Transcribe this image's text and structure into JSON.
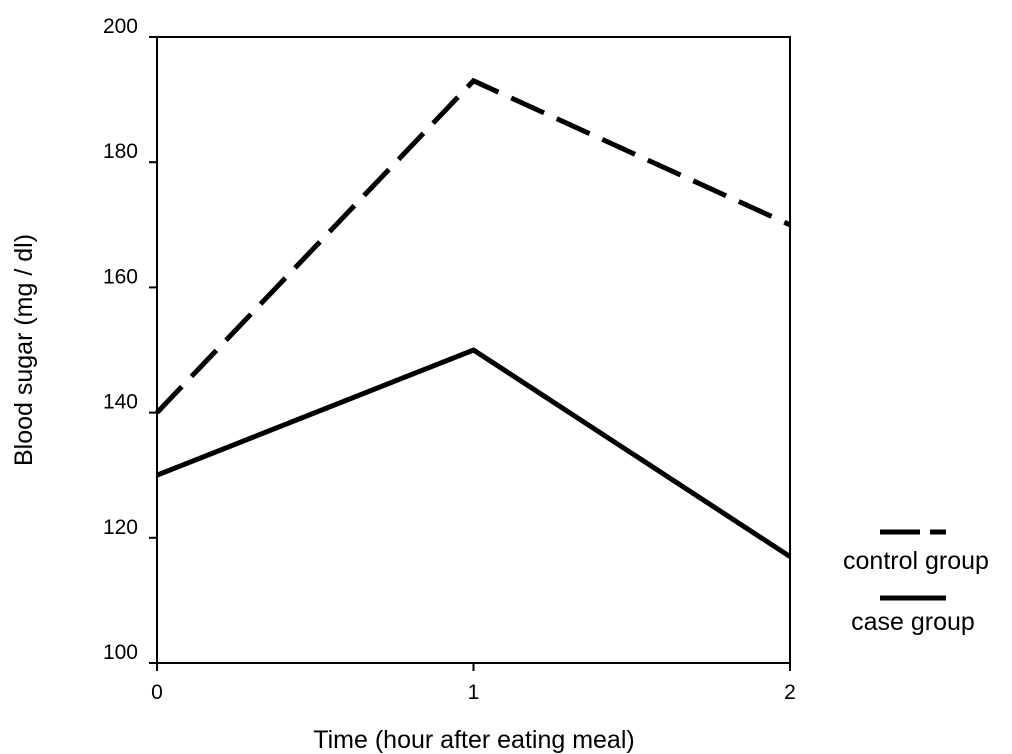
{
  "chart_data": {
    "type": "line",
    "title": "",
    "xlabel": "Time (hour after eating meal)",
    "ylabel": "Blood sugar (mg / dl)",
    "x": [
      0,
      1,
      2
    ],
    "x_ticks": [
      "0",
      "1",
      "2"
    ],
    "y_ticks": [
      "100",
      "120",
      "140",
      "160",
      "180",
      "200"
    ],
    "xlim": [
      0,
      2
    ],
    "ylim": [
      100,
      200
    ],
    "grid": false,
    "legend_position": "right",
    "series": [
      {
        "name": "control group",
        "values": [
          140,
          193,
          170
        ],
        "style": "dashed",
        "color": "#000000"
      },
      {
        "name": "case group",
        "values": [
          130,
          150,
          117
        ],
        "style": "solid",
        "color": "#000000"
      }
    ]
  }
}
